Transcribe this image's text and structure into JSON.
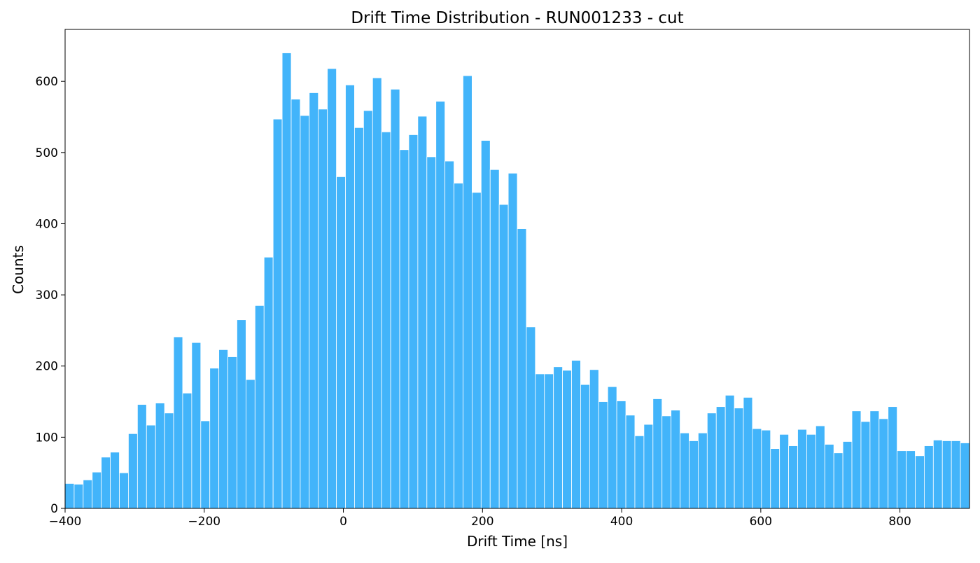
{
  "chart_data": {
    "type": "bar",
    "title": "Drift Time Distribution - RUN001233 - cut",
    "xlabel": "Drift Time [ns]",
    "ylabel": "Counts",
    "xlim": [
      -400,
      900
    ],
    "ylim": [
      0,
      673
    ],
    "bin_width": 13,
    "x_ticks": [
      -400,
      -200,
      0,
      200,
      400,
      600,
      800
    ],
    "x_tick_labels": [
      "−400",
      "−200",
      "0",
      "200",
      "400",
      "600",
      "800"
    ],
    "y_ticks": [
      0,
      100,
      200,
      300,
      400,
      500,
      600
    ],
    "y_tick_labels": [
      "0",
      "100",
      "200",
      "300",
      "400",
      "500",
      "600"
    ],
    "grid": false,
    "legend": "none",
    "bar_color": "#42b4fa",
    "bar_edge_color": "#ffffff",
    "bin_starts": [
      -400,
      -387,
      -374,
      -361,
      -348,
      -335,
      -322,
      -309,
      -296,
      -283,
      -270,
      -257,
      -244,
      -231,
      -218,
      -205,
      -192,
      -179,
      -166,
      -153,
      -140,
      -127,
      -114,
      -101,
      -88,
      -75,
      -62,
      -49,
      -36,
      -23,
      -10,
      3,
      16,
      29,
      42,
      55,
      68,
      81,
      94,
      107,
      120,
      133,
      146,
      159,
      172,
      185,
      198,
      211,
      224,
      237,
      250,
      263,
      276,
      289,
      302,
      315,
      328,
      341,
      354,
      367,
      380,
      393,
      406,
      419,
      432,
      445,
      458,
      471,
      484,
      497,
      510,
      523,
      536,
      549,
      562,
      575,
      588,
      601,
      614,
      627,
      640,
      653,
      666,
      679,
      692,
      705,
      718,
      731,
      744,
      757,
      770,
      783,
      796,
      809,
      822,
      835,
      848,
      861,
      874,
      887
    ],
    "values": [
      35,
      34,
      40,
      51,
      72,
      79,
      50,
      105,
      146,
      117,
      148,
      134,
      241,
      162,
      233,
      123,
      197,
      223,
      213,
      265,
      181,
      285,
      353,
      547,
      640,
      575,
      552,
      584,
      561,
      618,
      466,
      595,
      535,
      559,
      605,
      529,
      589,
      504,
      525,
      551,
      494,
      572,
      488,
      457,
      608,
      444,
      517,
      476,
      427,
      471,
      393,
      255,
      189,
      189,
      199,
      194,
      208,
      174,
      195,
      150,
      171,
      151,
      131,
      102,
      118,
      154,
      130,
      138,
      106,
      95,
      106,
      134,
      143,
      159,
      141,
      156,
      112,
      110,
      84,
      104,
      88,
      111,
      104,
      116,
      90,
      78,
      94,
      137,
      122,
      137,
      126,
      143,
      81,
      81,
      74,
      88,
      96,
      95,
      95,
      92
    ]
  }
}
